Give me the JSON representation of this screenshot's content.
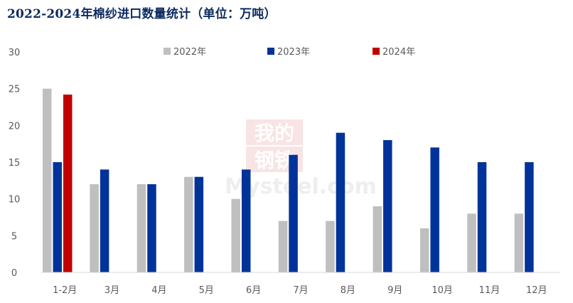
{
  "title": "2022-2024年棉纱进口数量统计（单位：万吨）",
  "watermark": {
    "top": "我的",
    "middle": "钢铁",
    "bottom": "Mysteel.com"
  },
  "colors": {
    "s2022": "#bfbfbf",
    "s2023": "#003399",
    "s2024": "#c00000"
  },
  "chart_data": {
    "type": "bar",
    "title": "2022-2024年棉纱进口数量统计（单位：万吨）",
    "unit": "万吨",
    "categories": [
      "1-2月",
      "3月",
      "4月",
      "5月",
      "6月",
      "7月",
      "8月",
      "9月",
      "10月",
      "11月",
      "12月"
    ],
    "series": [
      {
        "name": "2022年",
        "color": "#bfbfbf",
        "values": [
          25,
          12,
          12,
          13,
          10,
          7,
          7,
          9,
          6,
          8,
          8
        ]
      },
      {
        "name": "2023年",
        "color": "#003399",
        "values": [
          15,
          14,
          12,
          13,
          14,
          16,
          19,
          18,
          17,
          15,
          15
        ]
      },
      {
        "name": "2024年",
        "color": "#c00000",
        "values": [
          24.2,
          null,
          null,
          null,
          null,
          null,
          null,
          null,
          null,
          null,
          null
        ]
      }
    ],
    "yticks": [
      "0",
      "5",
      "10",
      "15",
      "20",
      "25",
      "30"
    ],
    "ylim": [
      0,
      30
    ],
    "grid": false,
    "legend_position": "top"
  }
}
